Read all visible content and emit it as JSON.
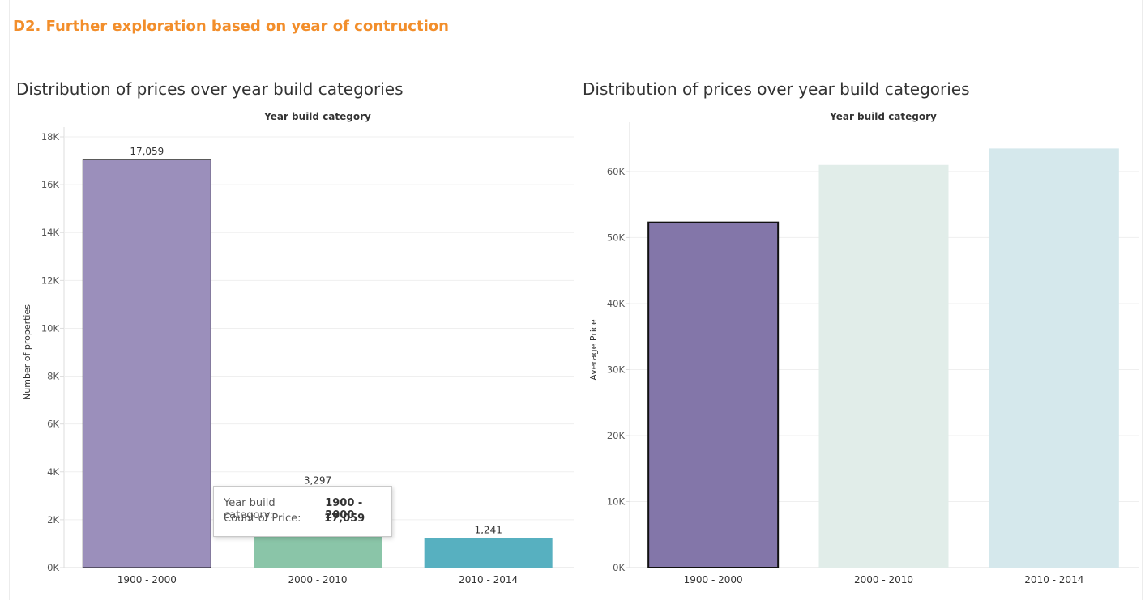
{
  "dashboard": {
    "title": "D2. Further exploration based on year of contruction"
  },
  "chart_data": [
    {
      "type": "bar",
      "title": "Distribution of prices over year build categories",
      "xheader": "Year build category",
      "ylabel": "Number of properties",
      "categories": [
        "1900 - 2000",
        "2000 - 2010",
        "2010 - 2014"
      ],
      "values": [
        17059,
        3297,
        1241
      ],
      "value_labels": [
        "17,059",
        "3,297",
        "1,241"
      ],
      "colors": [
        "#9b8fbb",
        "#8ac5a8",
        "#57b0c0"
      ],
      "highlighted": "1900 - 2000",
      "ylim": [
        0,
        18000
      ],
      "yticks": [
        0,
        2000,
        4000,
        6000,
        8000,
        10000,
        12000,
        14000,
        16000,
        18000
      ],
      "ytick_labels": [
        "0K",
        "2K",
        "4K",
        "6K",
        "8K",
        "10K",
        "12K",
        "14K",
        "16K",
        "18K"
      ],
      "grid": true
    },
    {
      "type": "bar",
      "title": "Distribution of prices over year build categories",
      "xheader": "Year build category",
      "ylabel": "Average Price",
      "categories": [
        "1900 - 2000",
        "2000 - 2010",
        "2010 - 2014"
      ],
      "values": [
        52300,
        61000,
        63500
      ],
      "colors": [
        "#8376a9",
        "#e1ede9",
        "#d5e8ec"
      ],
      "highlighted": "1900 - 2000",
      "ylim": [
        0,
        66000
      ],
      "yticks": [
        0,
        10000,
        20000,
        30000,
        40000,
        50000,
        60000
      ],
      "ytick_labels": [
        "0K",
        "10K",
        "20K",
        "30K",
        "40K",
        "50K",
        "60K"
      ],
      "grid": true
    }
  ],
  "tooltip": {
    "rows": [
      {
        "key": "Year build category:",
        "value": "1900 - 2000"
      },
      {
        "key": "Count of Price:",
        "value": "17,059"
      }
    ]
  }
}
